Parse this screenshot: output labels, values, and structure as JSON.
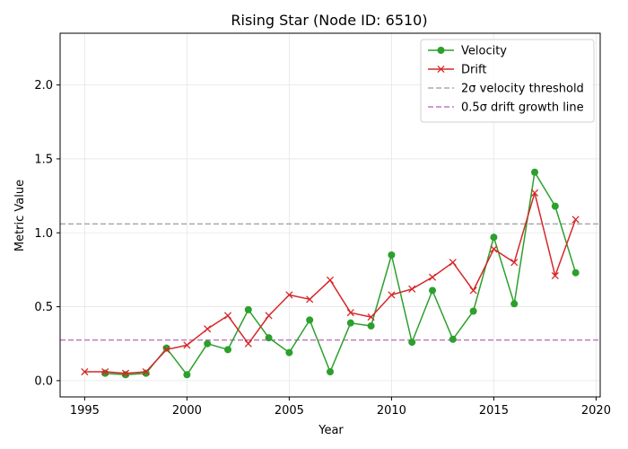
{
  "chart_data": {
    "type": "line",
    "title": "Rising Star (Node ID: 6510)",
    "xlabel": "Year",
    "ylabel": "Metric Value",
    "xlim": [
      1993.8,
      2020.2
    ],
    "ylim": [
      -0.11,
      2.35
    ],
    "xticks": [
      1995,
      2000,
      2005,
      2010,
      2015,
      2020
    ],
    "yticks": [
      0.0,
      0.5,
      1.0,
      1.5,
      2.0
    ],
    "ytick_labels": [
      "0.0",
      "0.5",
      "1.0",
      "1.5",
      "2.0"
    ],
    "grid": true,
    "legend_position": "top-right",
    "series": [
      {
        "name": "Velocity",
        "color": "#2ca02c",
        "marker": "circle",
        "x": [
          1996,
          1997,
          1998,
          1999,
          2000,
          2001,
          2002,
          2003,
          2004,
          2005,
          2006,
          2007,
          2008,
          2009,
          2010,
          2011,
          2012,
          2013,
          2014,
          2015,
          2016,
          2017,
          2018,
          2019
        ],
        "values": [
          0.05,
          0.04,
          0.05,
          0.22,
          0.04,
          0.25,
          0.21,
          0.48,
          0.29,
          0.19,
          0.41,
          0.06,
          0.39,
          0.37,
          0.85,
          0.26,
          0.61,
          0.28,
          0.47,
          0.97,
          0.52,
          1.41,
          1.18,
          0.73
        ]
      },
      {
        "name": "Drift",
        "color": "#d62728",
        "marker": "x",
        "x": [
          1995,
          1996,
          1997,
          1998,
          1999,
          2000,
          2001,
          2002,
          2003,
          2004,
          2005,
          2006,
          2007,
          2008,
          2009,
          2010,
          2011,
          2012,
          2013,
          2014,
          2015,
          2016,
          2017,
          2018,
          2019
        ],
        "values": [
          0.06,
          0.06,
          0.05,
          0.06,
          0.21,
          0.24,
          0.35,
          0.44,
          0.25,
          0.44,
          0.58,
          0.55,
          0.68,
          0.46,
          0.43,
          0.58,
          0.62,
          0.7,
          0.8,
          0.61,
          0.89,
          0.8,
          1.27,
          0.71,
          1.09
        ]
      }
    ],
    "reference_lines": [
      {
        "name": "2σ velocity threshold",
        "y": 1.06,
        "color": "#aaaaaa",
        "style": "dashed"
      },
      {
        "name": "0.5σ drift growth line",
        "y": 0.275,
        "color": "#c07ac0",
        "style": "dashed"
      }
    ]
  }
}
